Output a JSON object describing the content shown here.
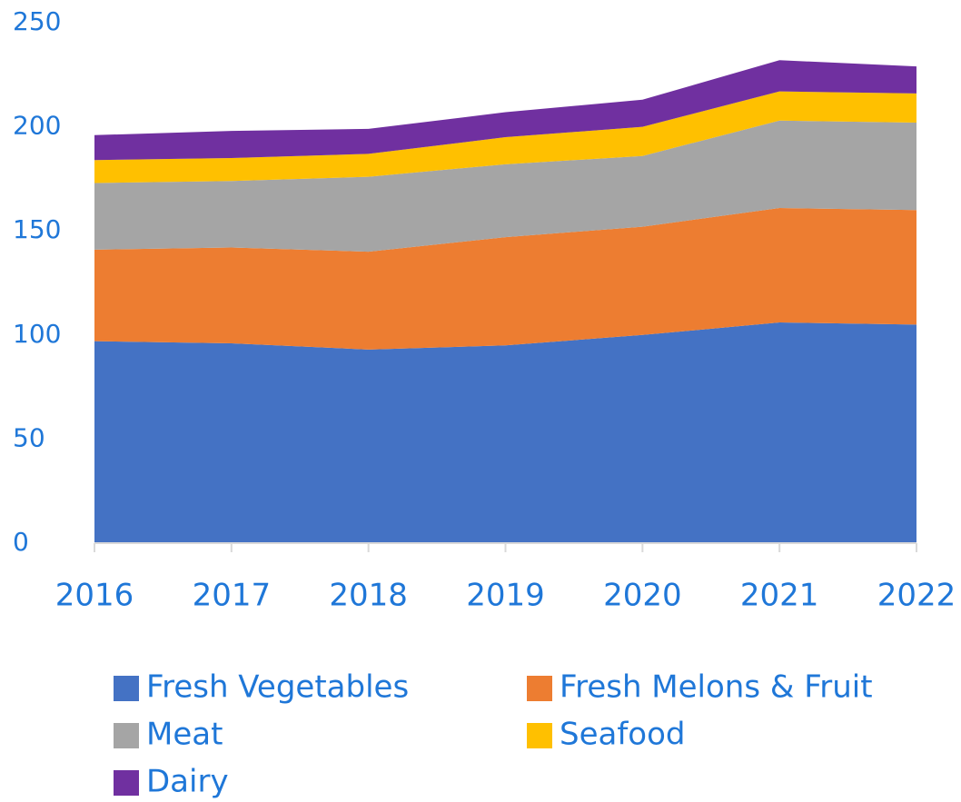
{
  "chart_data": {
    "type": "stacked_area",
    "categories": [
      "2016",
      "2017",
      "2018",
      "2019",
      "2020",
      "2021",
      "2022"
    ],
    "series": [
      {
        "name": "Fresh Vegetables",
        "color": "#4472C4",
        "values": [
          97,
          96,
          93,
          95,
          100,
          106,
          105
        ]
      },
      {
        "name": "Fresh Melons & Fruit",
        "color": "#ED7D31",
        "values": [
          44,
          46,
          47,
          52,
          52,
          55,
          55
        ]
      },
      {
        "name": "Meat",
        "color": "#A5A5A5",
        "values": [
          32,
          32,
          36,
          35,
          34,
          42,
          42
        ]
      },
      {
        "name": "Seafood",
        "color": "#FFC000",
        "values": [
          11,
          11,
          11,
          13,
          14,
          14,
          14
        ]
      },
      {
        "name": "Dairy",
        "color": "#7030A0",
        "values": [
          12,
          13,
          12,
          12,
          13,
          15,
          13
        ]
      }
    ],
    "ylim": [
      0,
      250
    ],
    "yticks": [
      0,
      50,
      100,
      150,
      200,
      250
    ],
    "grid": false
  }
}
